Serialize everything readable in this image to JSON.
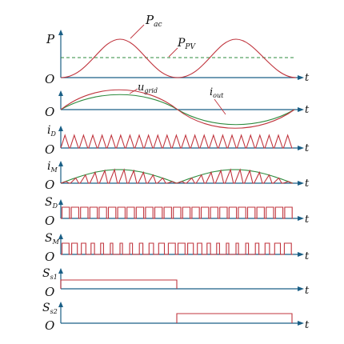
{
  "panels": [
    {
      "id": "power",
      "ylabel": "P",
      "ysub": "",
      "origin": "O",
      "tlabel": "t"
    },
    {
      "id": "grid",
      "ylabel": "",
      "ysub": "",
      "origin": "O",
      "tlabel": "t"
    },
    {
      "id": "iD",
      "ylabel": "i",
      "ysub": "D",
      "origin": "O",
      "tlabel": "t"
    },
    {
      "id": "iM",
      "ylabel": "i",
      "ysub": "M",
      "origin": "O",
      "tlabel": "t"
    },
    {
      "id": "SD",
      "ylabel": "S",
      "ysub": "D",
      "origin": "O",
      "tlabel": "t"
    },
    {
      "id": "SM",
      "ylabel": "S",
      "ysub": "M",
      "origin": "O",
      "tlabel": "t"
    },
    {
      "id": "S1",
      "ylabel": "S",
      "ysub": "s1",
      "origin": "O",
      "tlabel": "t"
    },
    {
      "id": "S2",
      "ylabel": "S",
      "ysub": "s2",
      "origin": "O",
      "tlabel": "t"
    }
  ],
  "annotations": {
    "pac": {
      "main": "P",
      "sub": "ac"
    },
    "ppv": {
      "main": "P",
      "sub": "PV"
    },
    "ugrid": {
      "main": "u",
      "sub": "grid"
    },
    "iout": {
      "main": "i",
      "sub": "out"
    }
  },
  "colors": {
    "axis": "#1a5f86",
    "red": "#c0343d",
    "green": "#2e8b3e"
  }
}
